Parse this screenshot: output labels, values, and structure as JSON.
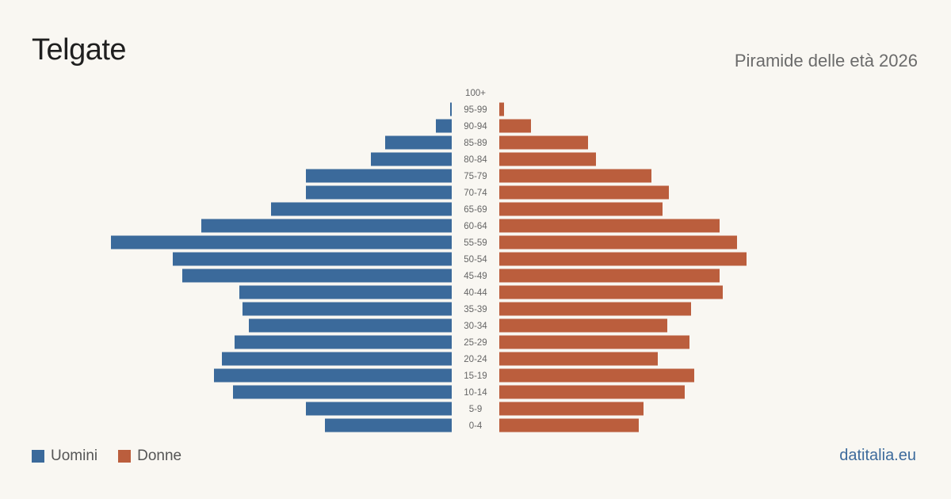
{
  "header": {
    "title": "Telgate",
    "subtitle": "Piramide delle età 2026"
  },
  "legend": {
    "men": {
      "label": "Uomini",
      "color": "#3b6a9b"
    },
    "women": {
      "label": "Donne",
      "color": "#bb5e3d"
    }
  },
  "brand": "datitalia.eu",
  "chart_data": {
    "type": "bar",
    "orientation": "horizontal-diverging",
    "categories": [
      "100+",
      "95-99",
      "90-94",
      "85-89",
      "80-84",
      "75-79",
      "70-74",
      "65-69",
      "60-64",
      "55-59",
      "50-54",
      "45-49",
      "40-44",
      "35-39",
      "30-34",
      "25-29",
      "20-24",
      "15-19",
      "10-14",
      "5-9",
      "0-4"
    ],
    "series": [
      {
        "name": "Uomini",
        "color": "#3b6a9b",
        "values": [
          0,
          1,
          10,
          42,
          51,
          92,
          92,
          114,
          158,
          215,
          176,
          170,
          134,
          132,
          128,
          137,
          145,
          150,
          138,
          92,
          80
        ]
      },
      {
        "name": "Donne",
        "color": "#bb5e3d",
        "values": [
          0,
          3,
          20,
          56,
          61,
          96,
          107,
          103,
          139,
          150,
          156,
          139,
          141,
          121,
          106,
          120,
          100,
          123,
          117,
          91,
          88
        ]
      }
    ],
    "xlim": [
      0,
      215
    ],
    "axis_labels_visible": false,
    "grid": false,
    "legend_position": "bottom-left"
  }
}
